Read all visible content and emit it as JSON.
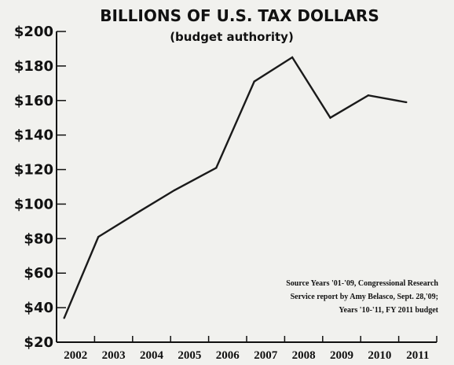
{
  "chart_data": {
    "type": "line",
    "title": "BILLIONS OF U.S. TAX DOLLARS",
    "subtitle": "(budget authority)",
    "xlabel": "",
    "ylabel": "",
    "ylim": [
      20,
      200
    ],
    "y_ticks": [
      20,
      40,
      60,
      80,
      100,
      120,
      140,
      160,
      180,
      200
    ],
    "y_tick_labels": [
      "$20",
      "$40",
      "$60",
      "$80",
      "$100",
      "$120",
      "$140",
      "$160",
      "$180",
      "$200"
    ],
    "categories": [
      "2002",
      "2003",
      "2004",
      "2005",
      "2006",
      "2007",
      "2008",
      "2009",
      "2010",
      "2011"
    ],
    "x": [
      2001.5,
      2002.4,
      2003.5,
      2004.4,
      2005.5,
      2006.5,
      2007.5,
      2008.5,
      2009.5,
      2010.5
    ],
    "values": [
      34,
      81,
      96,
      108,
      121,
      171,
      185,
      150,
      163,
      159
    ],
    "grid": false,
    "source_lines": [
      "Source Years '01-'09, Congressional Research",
      "Service report by Amy Belasco, Sept. 28,'09;",
      "Years '10-'11, FY 2011 budget"
    ],
    "colors": {
      "line": "#1a1a1a",
      "axis": "#111111",
      "background": "#f1f1ee"
    }
  }
}
